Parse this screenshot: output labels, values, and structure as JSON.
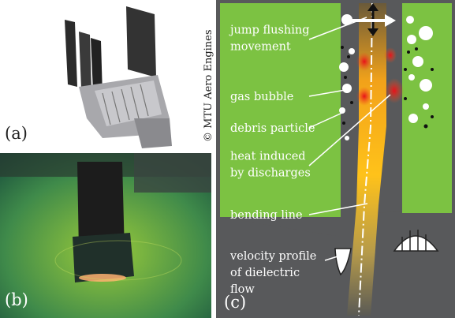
{
  "panels": {
    "a": "(a)",
    "b": "(b)",
    "c": "(c)"
  },
  "copyright": "© MTU Aero Engines",
  "annotations": [
    {
      "lines": [
        "jump flushing",
        "movement"
      ]
    },
    {
      "lines": [
        "gas bubble"
      ]
    },
    {
      "lines": [
        "debris particle"
      ]
    },
    {
      "lines": [
        "heat induced",
        "by discharges"
      ]
    },
    {
      "lines": [
        "bending line"
      ]
    },
    {
      "lines": [
        "velocity profile",
        "of dielectric",
        "flow"
      ]
    }
  ]
}
